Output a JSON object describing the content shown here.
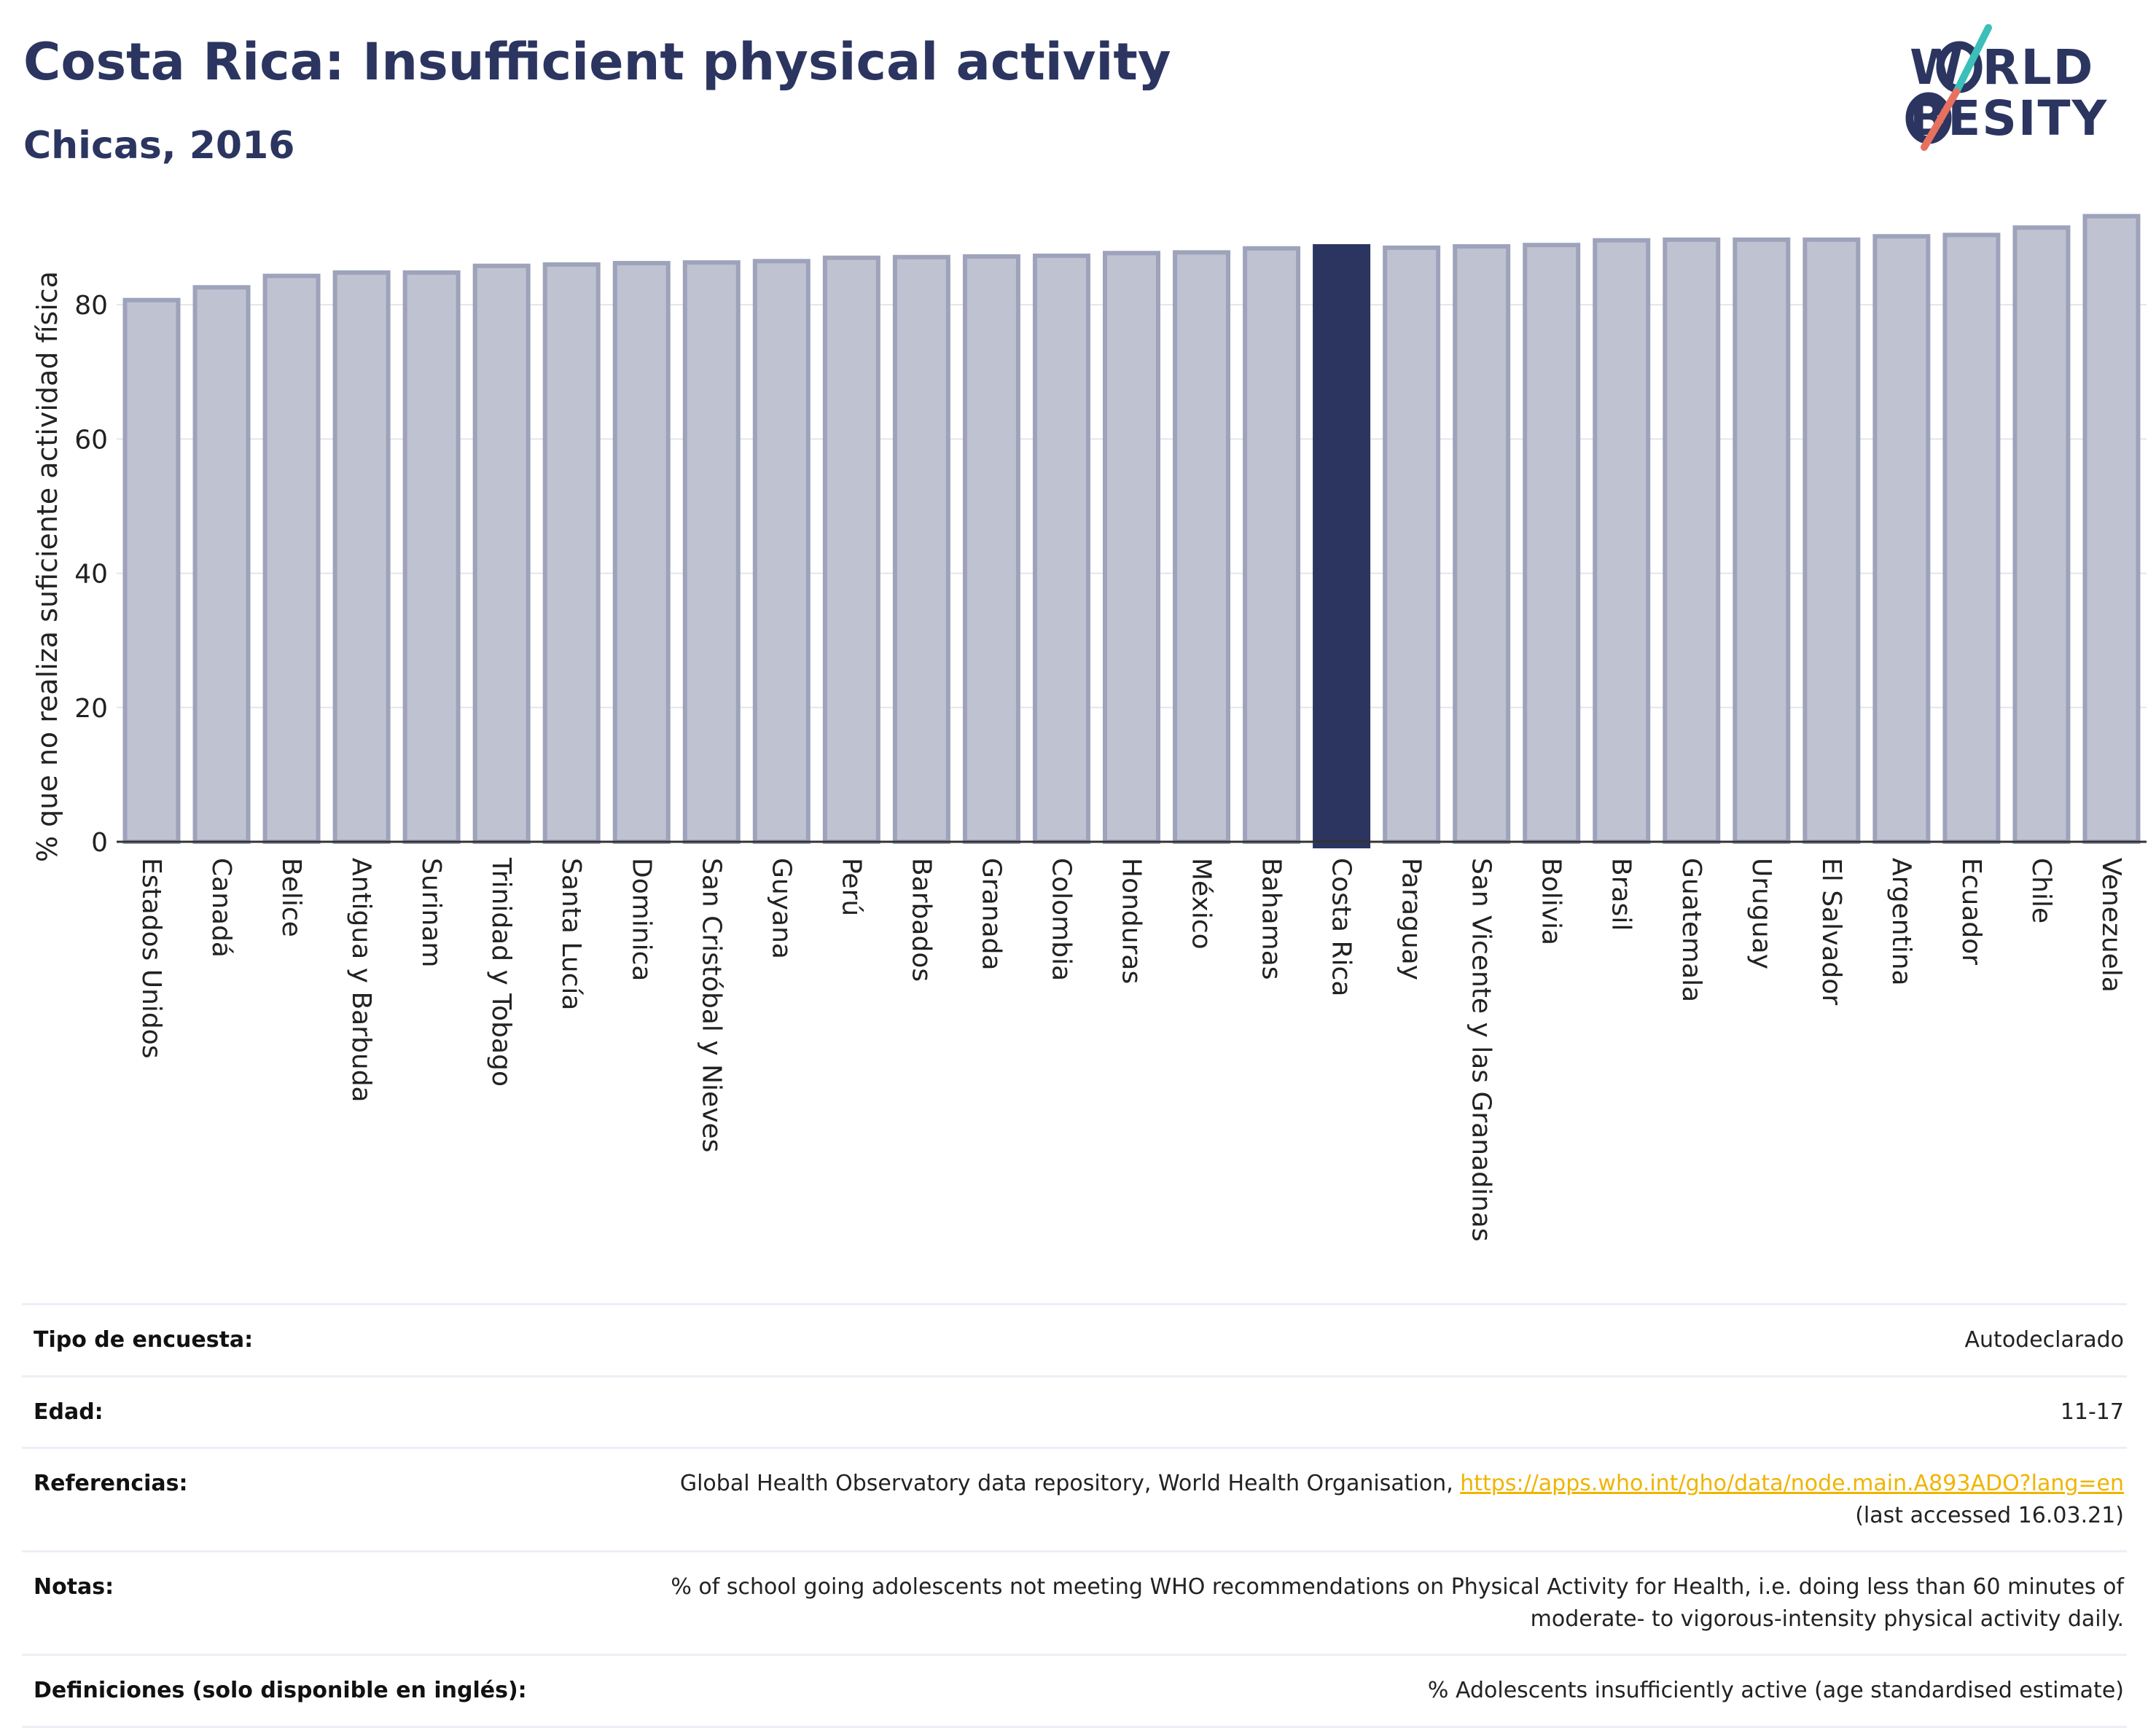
{
  "header": {
    "title": "Costa Rica: Insufficient physical activity",
    "subtitle": "Chicas, 2016"
  },
  "logo": {
    "line1": "W  RLD",
    "line2": "  BESITY",
    "accent_teal": "#3bbfb8",
    "accent_coral": "#e8705f"
  },
  "colors": {
    "bar_default": "#bfc2d0",
    "bar_border": "#9ea3bb",
    "bar_highlight": "#2b3560",
    "axis": "#333333",
    "grid": "#e3e5ec"
  },
  "chart_data": {
    "type": "bar",
    "ylabel": "% que no realiza suficiente actividad física",
    "ylim": [
      0,
      95
    ],
    "yticks": [
      0,
      20,
      40,
      60,
      80
    ],
    "highlight": "Costa Rica",
    "grid": true,
    "categories": [
      "Estados Unidos",
      "Canadá",
      "Belice",
      "Antigua y Barbuda",
      "Surinam",
      "Trinidad y Tobago",
      "Santa Lucía",
      "Dominica",
      "San Cristóbal y Nieves",
      "Guyana",
      "Perú",
      "Barbados",
      "Granada",
      "Colombia",
      "Honduras",
      "México",
      "Bahamas",
      "Costa Rica",
      "Paraguay",
      "San Vicente y las Granadinas",
      "Bolivia",
      "Brasil",
      "Guatemala",
      "Uruguay",
      "El Salvador",
      "Argentina",
      "Ecuador",
      "Chile",
      "Venezuela"
    ],
    "values": [
      80.7,
      82.6,
      84.3,
      84.8,
      84.8,
      85.8,
      86.0,
      86.2,
      86.3,
      86.5,
      87.0,
      87.1,
      87.2,
      87.3,
      87.7,
      87.8,
      88.4,
      88.7,
      88.5,
      88.7,
      88.9,
      89.6,
      89.7,
      89.7,
      89.7,
      90.2,
      90.4,
      91.5,
      93.2
    ]
  },
  "info": {
    "rows": [
      {
        "label": "Tipo de encuesta:",
        "value": "Autodeclarado"
      },
      {
        "label": "Edad:",
        "value": "11-17"
      },
      {
        "label": "Notas:",
        "value": "% of school going adolescents not meeting WHO recommendations on Physical Activity for Health, i.e. doing less than 60 minutes of moderate- to vigorous-intensity physical activity daily."
      },
      {
        "label": "Definiciones (solo disponible en inglés):",
        "value": "% Adolescents insufficiently active (age standardised estimate)"
      }
    ],
    "references": {
      "label": "Referencias:",
      "text": "Global Health Observatory data repository, World Health Organisation, ",
      "link": "https://apps.who.int/gho/data/node.main.A893ADO?lang=en",
      "accessed": "(last accessed 16.03.21)"
    }
  }
}
